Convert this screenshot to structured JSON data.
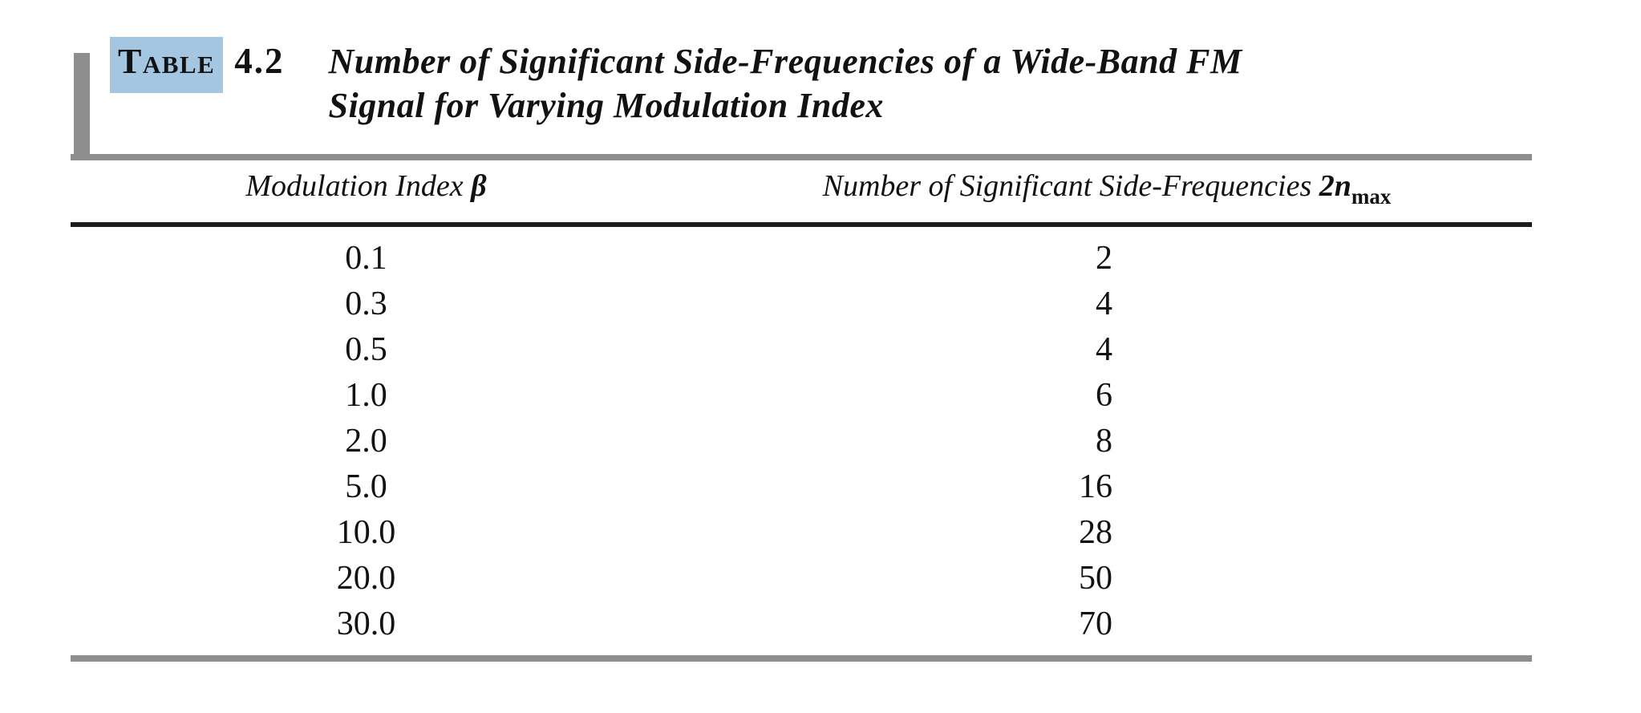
{
  "table": {
    "tag": "Table",
    "number": "4.2",
    "title_line1": "Number of Significant Side-Frequencies of a Wide-Band FM",
    "title_line2": "Signal for Varying Modulation Index",
    "columns": [
      {
        "label": "Modulation Index ",
        "symbol": "β",
        "subscript": ""
      },
      {
        "label": "Number of Significant Side-Frequencies ",
        "symbol": "2n",
        "subscript": "max"
      }
    ],
    "rows": [
      {
        "beta": "0.1",
        "side_frequencies": "2"
      },
      {
        "beta": "0.3",
        "side_frequencies": "4"
      },
      {
        "beta": "0.5",
        "side_frequencies": "4"
      },
      {
        "beta": "1.0",
        "side_frequencies": "6"
      },
      {
        "beta": "2.0",
        "side_frequencies": "8"
      },
      {
        "beta": "5.0",
        "side_frequencies": "16"
      },
      {
        "beta": "10.0",
        "side_frequencies": "28"
      },
      {
        "beta": "20.0",
        "side_frequencies": "50"
      },
      {
        "beta": "30.0",
        "side_frequencies": "70"
      }
    ]
  },
  "colors": {
    "highlight": "#a5c6e0",
    "rule_gray": "#8e8e8e",
    "rule_black": "#1c1c1c",
    "text": "#121212"
  }
}
